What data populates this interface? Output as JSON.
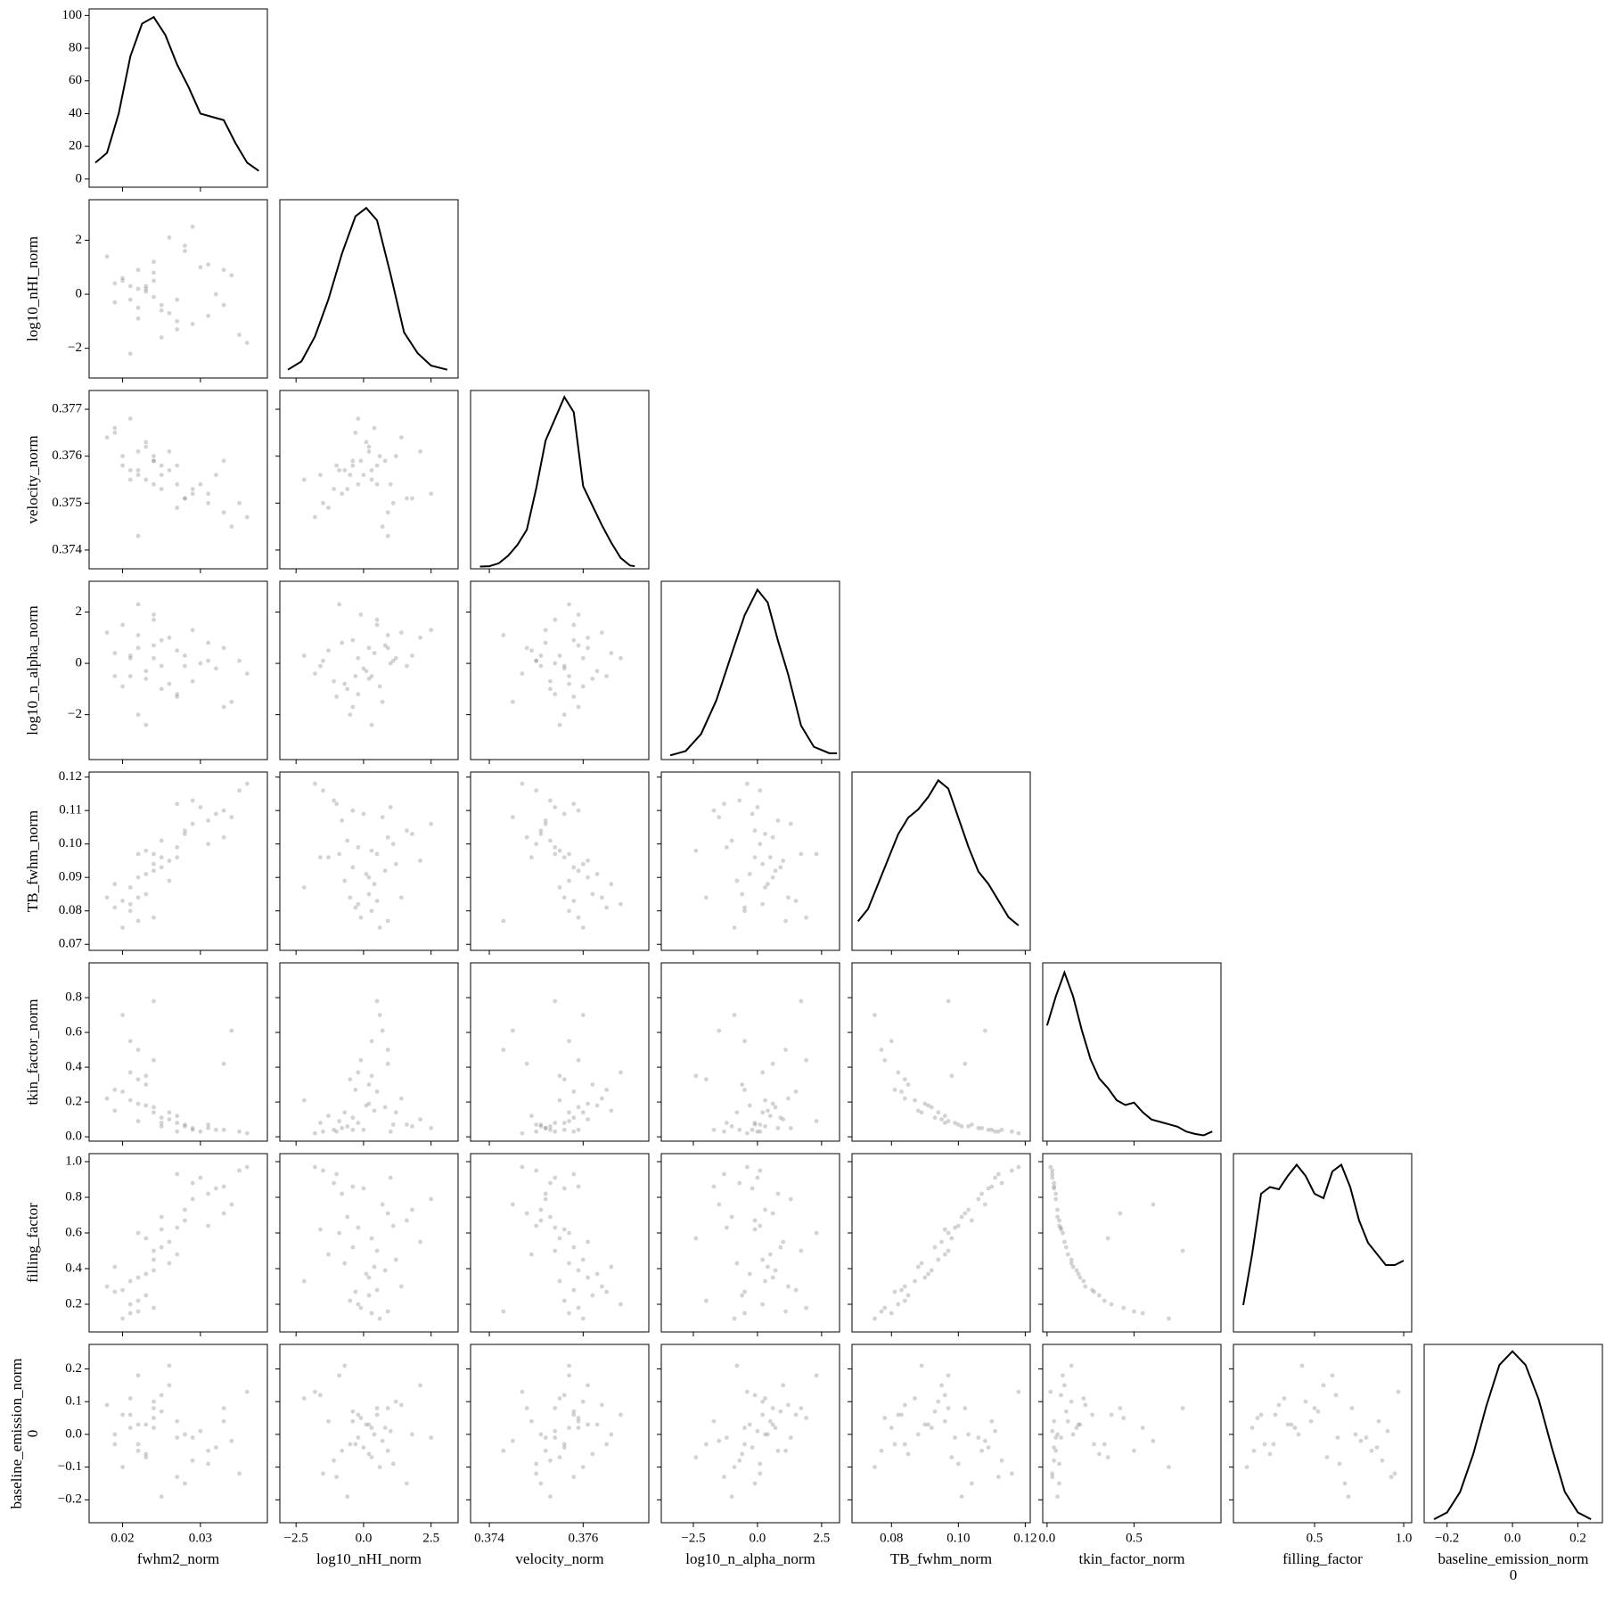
{
  "chart_data": {
    "type": "corner",
    "point_color": "#808080",
    "line_color": "#000000",
    "variables": [
      {
        "label": [
          "fwhm2_norm"
        ],
        "lim": [
          0.0157,
          0.0386
        ],
        "xticks": [
          0.02,
          0.03
        ],
        "samples": [
          0.021,
          0.031,
          0.024,
          0.027,
          0.02,
          0.035,
          0.023,
          0.033,
          0.022,
          0.026,
          0.029,
          0.019,
          0.024,
          0.028,
          0.021,
          0.034,
          0.025,
          0.023,
          0.03,
          0.022,
          0.02,
          0.027,
          0.032,
          0.018,
          0.025,
          0.024,
          0.036,
          0.023,
          0.021,
          0.029,
          0.026,
          0.031,
          0.022,
          0.027,
          0.024,
          0.019,
          0.028,
          0.025,
          0.022,
          0.033
        ],
        "kde": {
          "x": [
            0.0165,
            0.018,
            0.0195,
            0.021,
            0.0225,
            0.024,
            0.0255,
            0.027,
            0.0285,
            0.03,
            0.0315,
            0.033,
            0.0345,
            0.036,
            0.0375
          ],
          "y": [
            10,
            16,
            40,
            75,
            95,
            99,
            88,
            70,
            56,
            40,
            38,
            36,
            22,
            10,
            5
          ],
          "ylim": [
            -5,
            104
          ],
          "yticks": [
            0,
            20,
            40,
            60,
            80,
            100
          ]
        }
      },
      {
        "label": [
          "log10_nHI_norm"
        ],
        "lim": [
          -3.1,
          3.5
        ],
        "xticks": [
          {
            "value": -2.5,
            "label": "−2.5"
          },
          {
            "value": 0,
            "label": "0.0"
          },
          2.5
        ],
        "yticks": [
          {
            "value": -2,
            "label": "−2"
          },
          0,
          2
        ],
        "samples": [
          0.3,
          -0.8,
          1.2,
          -0.2,
          0.5,
          -1.5,
          0.1,
          0.9,
          -0.5,
          2.1,
          -1.1,
          0.4,
          -0.1,
          1.6,
          -2.2,
          0.7,
          -0.4,
          0.2,
          1.0,
          -0.9,
          0.6,
          -1.3,
          0.0,
          1.4,
          -0.6,
          0.8,
          -1.8,
          0.3,
          -0.2,
          2.5,
          -0.7,
          1.1,
          0.2,
          -1.0,
          0.5,
          -0.3,
          1.8,
          -1.6,
          0.9,
          -0.4
        ],
        "kde": {
          "x": [
            -2.8,
            -2.3,
            -1.8,
            -1.3,
            -0.8,
            -0.3,
            0.1,
            0.5,
            1.0,
            1.5,
            2.0,
            2.5,
            3.1
          ],
          "y": [
            0.01,
            0.03,
            0.09,
            0.18,
            0.29,
            0.38,
            0.4,
            0.37,
            0.24,
            0.1,
            0.05,
            0.02,
            0.01
          ],
          "ylim": [
            -0.01,
            0.42
          ]
        }
      },
      {
        "label": [
          "velocity_norm"
        ],
        "lim": [
          0.3736,
          0.3774
        ],
        "xticks": [
          0.374,
          0.376
        ],
        "yticks": [
          0.374,
          0.375,
          0.376,
          0.377
        ],
        "samples": [
          0.3757,
          0.3752,
          0.376,
          0.3754,
          0.3758,
          0.375,
          0.3763,
          0.3748,
          0.3756,
          0.3761,
          0.3753,
          0.3766,
          0.3759,
          0.3751,
          0.3755,
          0.3745,
          0.3758,
          0.3762,
          0.3754,
          0.3757,
          0.376,
          0.3749,
          0.3756,
          0.3764,
          0.3753,
          0.3759,
          0.3747,
          0.3755,
          0.3768,
          0.3752,
          0.3757,
          0.375,
          0.3761,
          0.3758,
          0.3754,
          0.3765,
          0.3751,
          0.3756,
          0.3743,
          0.3759
        ],
        "kde": {
          "x": [
            0.3738,
            0.374,
            0.3742,
            0.3744,
            0.3746,
            0.3748,
            0.375,
            0.3752,
            0.3754,
            0.3756,
            0.3758,
            0.376,
            0.3762,
            0.3764,
            0.3766,
            0.3768,
            0.377,
            0.3771
          ],
          "y": [
            10,
            12,
            25,
            60,
            110,
            180,
            370,
            590,
            690,
            790,
            720,
            380,
            290,
            200,
            120,
            50,
            15,
            12
          ],
          "ylim": [
            0,
            820
          ]
        }
      },
      {
        "label": [
          "log10_n_alpha_norm"
        ],
        "lim": [
          -3.75,
          3.2
        ],
        "xticks": [
          {
            "value": -2.5,
            "label": "−2.5"
          },
          {
            "value": 0,
            "label": "0.0"
          },
          2.5
        ],
        "yticks": [
          {
            "value": -2,
            "label": "−2"
          },
          0,
          2
        ],
        "samples": [
          -0.5,
          0.8,
          0.2,
          -1.2,
          1.5,
          0.1,
          -0.3,
          0.6,
          -2.0,
          1.0,
          -0.7,
          0.4,
          1.9,
          -0.1,
          0.3,
          -1.5,
          0.9,
          -0.6,
          0.0,
          2.3,
          -0.9,
          0.5,
          -0.2,
          1.2,
          -1.0,
          0.7,
          -0.4,
          -2.4,
          0.2,
          1.3,
          -0.8,
          0.1,
          0.6,
          -1.3,
          1.7,
          -0.5,
          0.3,
          -0.1,
          1.1,
          -1.7
        ],
        "kde": {
          "x": [
            -3.4,
            -2.8,
            -2.2,
            -1.6,
            -1.0,
            -0.5,
            0.0,
            0.4,
            0.8,
            1.2,
            1.7,
            2.2,
            2.8,
            3.1
          ],
          "y": [
            0.01,
            0.02,
            0.06,
            0.14,
            0.25,
            0.34,
            0.4,
            0.37,
            0.28,
            0.2,
            0.08,
            0.03,
            0.015,
            0.015
          ],
          "ylim": [
            0,
            0.42
          ]
        }
      },
      {
        "label": [
          "TB_fwhm_norm"
        ],
        "lim": [
          0.0682,
          0.1215
        ],
        "xticks": [
          0.08,
          {
            "value": 0.1,
            "label": "0.10"
          },
          0.12
        ],
        "yticks": [
          0.07,
          0.08,
          0.09,
          {
            "value": 0.1,
            "label": "0.10"
          },
          0.11,
          0.12
        ],
        "samples": [
          0.08,
          0.107,
          0.094,
          0.099,
          0.083,
          0.116,
          0.091,
          0.102,
          0.084,
          0.095,
          0.113,
          0.088,
          0.078,
          0.104,
          0.087,
          0.108,
          0.093,
          0.085,
          0.111,
          0.097,
          0.075,
          0.096,
          0.109,
          0.084,
          0.101,
          0.092,
          0.118,
          0.098,
          0.082,
          0.106,
          0.089,
          0.1,
          0.09,
          0.112,
          0.097,
          0.081,
          0.103,
          0.096,
          0.077,
          0.11
        ],
        "kde": {
          "x": [
            0.07,
            0.073,
            0.076,
            0.079,
            0.082,
            0.085,
            0.088,
            0.091,
            0.094,
            0.097,
            0.1,
            0.103,
            0.106,
            0.109,
            0.112,
            0.115,
            0.118
          ],
          "y": [
            7,
            10,
            16,
            22,
            28,
            32,
            34,
            37,
            41,
            39,
            32,
            25,
            19,
            16,
            12,
            8,
            6
          ],
          "ylim": [
            0,
            43
          ]
        }
      },
      {
        "label": [
          "tkin_factor_norm"
        ],
        "lim": [
          -0.025,
          1.0
        ],
        "xticks": [
          {
            "value": 0,
            "label": "0.0"
          },
          0.5
        ],
        "yticks": [
          {
            "value": 0,
            "label": "0.0"
          },
          0.2,
          0.4,
          0.6,
          0.8
        ],
        "samples": [
          0.55,
          0.05,
          0.14,
          0.08,
          0.26,
          0.03,
          0.18,
          0.42,
          0.33,
          0.1,
          0.04,
          0.15,
          0.44,
          0.07,
          0.21,
          0.61,
          0.11,
          0.3,
          0.03,
          0.09,
          0.7,
          0.12,
          0.04,
          0.22,
          0.06,
          0.17,
          0.02,
          0.35,
          0.37,
          0.05,
          0.14,
          0.07,
          0.19,
          0.03,
          0.78,
          0.27,
          0.06,
          0.08,
          0.5,
          0.04
        ],
        "kde": {
          "x": [
            0.0,
            0.05,
            0.1,
            0.15,
            0.2,
            0.25,
            0.3,
            0.35,
            0.4,
            0.45,
            0.5,
            0.55,
            0.6,
            0.65,
            0.7,
            0.75,
            0.8,
            0.85,
            0.9,
            0.95
          ],
          "y": [
            2.4,
            3.0,
            3.5,
            3.0,
            2.3,
            1.7,
            1.3,
            1.1,
            0.85,
            0.75,
            0.8,
            0.6,
            0.45,
            0.4,
            0.35,
            0.3,
            0.2,
            0.15,
            0.12,
            0.2
          ],
          "ylim": [
            0,
            3.7
          ]
        }
      },
      {
        "label": [
          "filling_factor"
        ],
        "lim": [
          0.045,
          1.045
        ],
        "xticks": [
          0.5,
          {
            "value": 1,
            "label": "1.0"
          }
        ],
        "yticks": [
          0.2,
          0.4,
          0.6,
          0.8,
          {
            "value": 1,
            "label": "1.0"
          }
        ],
        "samples": [
          0.15,
          0.82,
          0.45,
          0.63,
          0.28,
          0.95,
          0.37,
          0.71,
          0.22,
          0.55,
          0.88,
          0.41,
          0.18,
          0.67,
          0.33,
          0.76,
          0.52,
          0.25,
          0.91,
          0.6,
          0.12,
          0.48,
          0.85,
          0.3,
          0.69,
          0.39,
          0.97,
          0.57,
          0.2,
          0.79,
          0.43,
          0.64,
          0.35,
          0.93,
          0.5,
          0.27,
          0.73,
          0.62,
          0.16,
          0.86
        ],
        "kde": {
          "x": [
            0.1,
            0.15,
            0.2,
            0.25,
            0.3,
            0.35,
            0.4,
            0.45,
            0.5,
            0.55,
            0.6,
            0.65,
            0.7,
            0.75,
            0.8,
            0.85,
            0.9,
            0.95,
            1.0
          ],
          "y": [
            0.62,
            0.85,
            1.12,
            1.15,
            1.14,
            1.2,
            1.25,
            1.2,
            1.12,
            1.1,
            1.22,
            1.25,
            1.15,
            1.0,
            0.9,
            0.85,
            0.8,
            0.8,
            0.82
          ],
          "ylim": [
            0.5,
            1.3
          ]
        }
      },
      {
        "label": [
          "baseline_emission_norm",
          "0"
        ],
        "lim": [
          -0.27,
          0.275
        ],
        "xticks": [
          {
            "value": -0.2,
            "label": "−0.2"
          },
          {
            "value": 0,
            "label": "0.0"
          },
          0.2
        ],
        "yticks": [
          {
            "value": -0.2,
            "label": "−0.2"
          },
          {
            "value": -0.1,
            "label": "−0.1"
          },
          {
            "value": 0,
            "label": "0.0"
          },
          0.1,
          0.2
        ],
        "samples": [
          0.02,
          -0.05,
          0.1,
          -0.01,
          0.06,
          -0.12,
          0.03,
          0.08,
          -0.03,
          0.15,
          -0.08,
          0.0,
          0.05,
          -0.15,
          0.11,
          -0.02,
          0.07,
          -0.06,
          0.01,
          0.18,
          -0.1,
          0.04,
          -0.04,
          0.09,
          -0.19,
          0.02,
          0.13,
          -0.07,
          0.06,
          -0.01,
          0.21,
          -0.09,
          0.03,
          -0.13,
          0.08,
          -0.03,
          0.0,
          0.12,
          -0.05,
          0.04
        ],
        "kde": {
          "x": [
            -0.24,
            -0.2,
            -0.16,
            -0.12,
            -0.08,
            -0.04,
            0.0,
            0.04,
            0.08,
            0.12,
            0.16,
            0.2,
            0.24
          ],
          "y": [
            0.1,
            0.3,
            0.9,
            2.0,
            3.4,
            4.6,
            5.0,
            4.6,
            3.6,
            2.2,
            0.9,
            0.3,
            0.1
          ],
          "ylim": [
            0,
            5.2
          ]
        }
      }
    ]
  }
}
